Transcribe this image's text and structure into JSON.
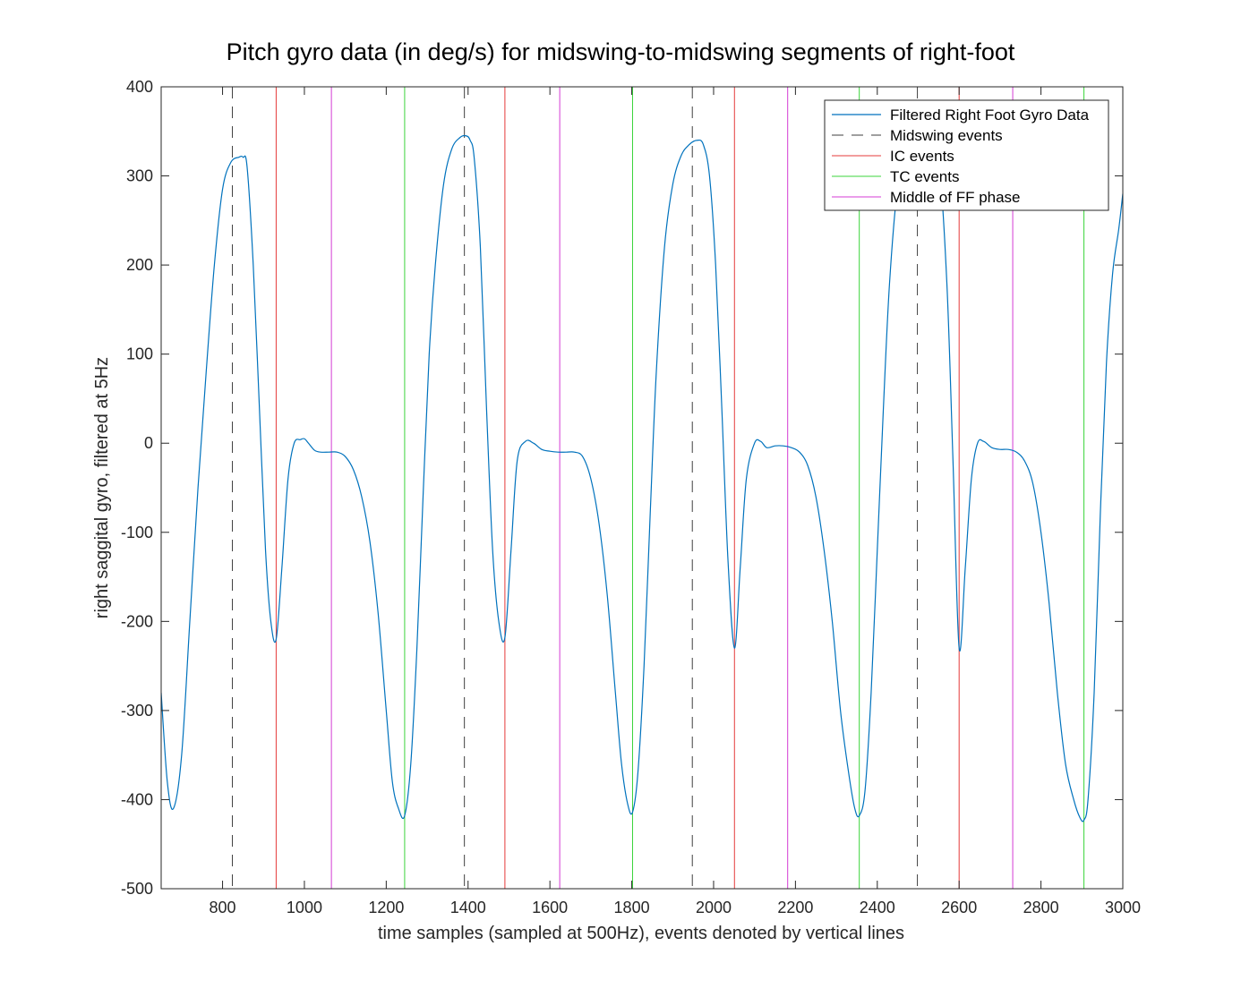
{
  "chart_data": {
    "type": "line",
    "title": "Pitch gyro data (in deg/s) for midswing-to-midswing segments of right-foot",
    "xlabel": "time samples (sampled at 500Hz), events denoted by vertical lines",
    "ylabel": "right saggital gyro, filtered at 5Hz",
    "xlim": [
      650,
      3000
    ],
    "ylim": [
      -500,
      400
    ],
    "xticks": [
      800,
      1000,
      1200,
      1400,
      1600,
      1800,
      2000,
      2200,
      2400,
      2600,
      2800,
      3000
    ],
    "yticks": [
      -500,
      -400,
      -300,
      -200,
      -100,
      0,
      100,
      200,
      300,
      400
    ],
    "grid": false,
    "legend_position": "top-right",
    "colors": {
      "gyro": "#0072BD",
      "midswing": "#000000",
      "ic": "#E53B3B",
      "tc": "#3BD43B",
      "ff": "#D43BD4",
      "axes": "#262626"
    },
    "legend": [
      {
        "label": "Filtered Right Foot Gyro Data",
        "series": "gyro",
        "style": "solid"
      },
      {
        "label": "Midswing events",
        "series": "midswing",
        "style": "dashed"
      },
      {
        "label": "IC events",
        "series": "ic",
        "style": "solid"
      },
      {
        "label": "TC events",
        "series": "tc",
        "style": "solid"
      },
      {
        "label": "Middle of FF phase",
        "series": "ff",
        "style": "solid"
      }
    ],
    "events": {
      "midswing": [
        824,
        1391,
        1948,
        2498
      ],
      "ic": [
        931,
        1490,
        2051,
        2600
      ],
      "tc": [
        1245,
        1802,
        2356,
        2905
      ],
      "ff": [
        1066,
        1624,
        2181,
        2731
      ]
    },
    "series": [
      {
        "name": "Filtered Right Foot Gyro Data",
        "x": [
          650,
          665,
          680,
          700,
          720,
          740,
          760,
          780,
          800,
          820,
          840,
          850,
          860,
          875,
          890,
          905,
          918,
          931,
          945,
          960,
          975,
          990,
          1000,
          1010,
          1025,
          1040,
          1060,
          1080,
          1100,
          1120,
          1140,
          1160,
          1180,
          1200,
          1215,
          1230,
          1245,
          1260,
          1275,
          1290,
          1305,
          1320,
          1340,
          1360,
          1380,
          1395,
          1405,
          1415,
          1430,
          1445,
          1460,
          1475,
          1490,
          1505,
          1520,
          1540,
          1560,
          1580,
          1600,
          1620,
          1640,
          1660,
          1680,
          1700,
          1720,
          1740,
          1760,
          1775,
          1790,
          1802,
          1815,
          1830,
          1845,
          1860,
          1880,
          1900,
          1920,
          1940,
          1960,
          1975,
          1990,
          2005,
          2020,
          2035,
          2051,
          2065,
          2080,
          2100,
          2115,
          2130,
          2150,
          2170,
          2190,
          2210,
          2230,
          2250,
          2270,
          2290,
          2310,
          2330,
          2345,
          2356,
          2370,
          2385,
          2400,
          2415,
          2430,
          2450,
          2470,
          2490,
          2510,
          2530,
          2550,
          2570,
          2585,
          2600,
          2615,
          2630,
          2645,
          2660,
          2680,
          2700,
          2720,
          2740,
          2760,
          2780,
          2800,
          2820,
          2840,
          2860,
          2880,
          2895,
          2905,
          2915,
          2930,
          2945,
          2960,
          2975,
          2990,
          3000
        ],
        "values": [
          -280,
          -380,
          -410,
          -350,
          -200,
          -50,
          80,
          200,
          285,
          315,
          321,
          321,
          310,
          200,
          40,
          -120,
          -200,
          -220,
          -140,
          -40,
          0,
          4,
          5,
          0,
          -8,
          -10,
          -10,
          -10,
          -15,
          -30,
          -60,
          -110,
          -190,
          -300,
          -380,
          -410,
          -418,
          -360,
          -230,
          -60,
          100,
          200,
          290,
          330,
          343,
          345,
          340,
          320,
          220,
          40,
          -120,
          -200,
          -218,
          -120,
          -20,
          2,
          0,
          -7,
          -9,
          -10,
          -10,
          -10,
          -15,
          -40,
          -90,
          -170,
          -280,
          -360,
          -405,
          -414,
          -370,
          -250,
          -80,
          80,
          220,
          290,
          322,
          335,
          340,
          335,
          300,
          200,
          40,
          -130,
          -230,
          -140,
          -40,
          0,
          2,
          -5,
          -3,
          -3,
          -5,
          -10,
          -25,
          -60,
          -120,
          -200,
          -300,
          -370,
          -410,
          -418,
          -390,
          -280,
          -120,
          40,
          180,
          290,
          335,
          340,
          340,
          340,
          320,
          180,
          -20,
          -230,
          -140,
          -40,
          0,
          2,
          -5,
          -7,
          -7,
          -10,
          -20,
          -45,
          -100,
          -180,
          -280,
          -360,
          -400,
          -420,
          -423,
          -400,
          -280,
          -80,
          90,
          190,
          240,
          280
        ]
      }
    ]
  }
}
